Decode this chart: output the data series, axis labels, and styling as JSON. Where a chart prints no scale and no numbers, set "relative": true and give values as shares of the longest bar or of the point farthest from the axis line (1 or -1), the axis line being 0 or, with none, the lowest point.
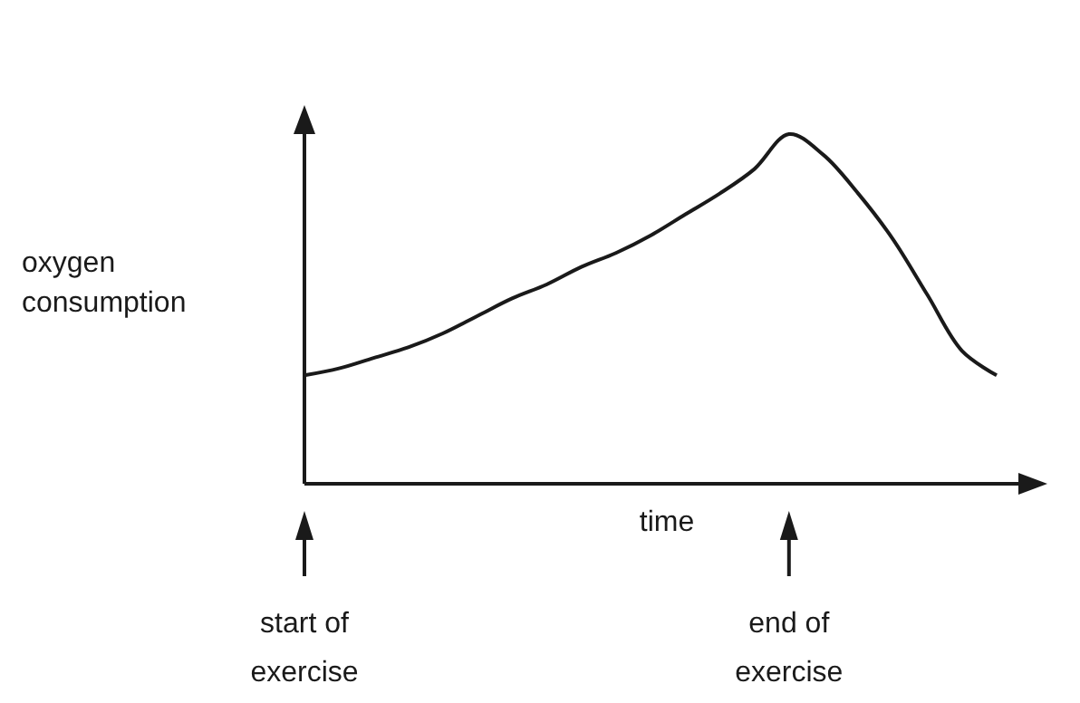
{
  "chart_data": {
    "type": "line",
    "relative": true,
    "xlabel": "time",
    "ylabel": "oxygen consumption",
    "color": "#1a1a1a",
    "categories": [
      null,
      null,
      null,
      null,
      null,
      null,
      null,
      null,
      null,
      null,
      null,
      null,
      null,
      null,
      null,
      null,
      null,
      null,
      null,
      null,
      null
    ],
    "values": [
      0.31,
      0.33,
      0.36,
      0.39,
      0.43,
      0.48,
      0.53,
      0.57,
      0.62,
      0.66,
      0.71,
      0.77,
      0.83,
      0.9,
      1,
      0.94,
      0.83,
      0.7,
      0.54,
      0.38,
      0.31
    ],
    "annotations": [
      "start of exercise",
      "end of exercise"
    ],
    "marker": "none",
    "line_style": "solid"
  }
}
